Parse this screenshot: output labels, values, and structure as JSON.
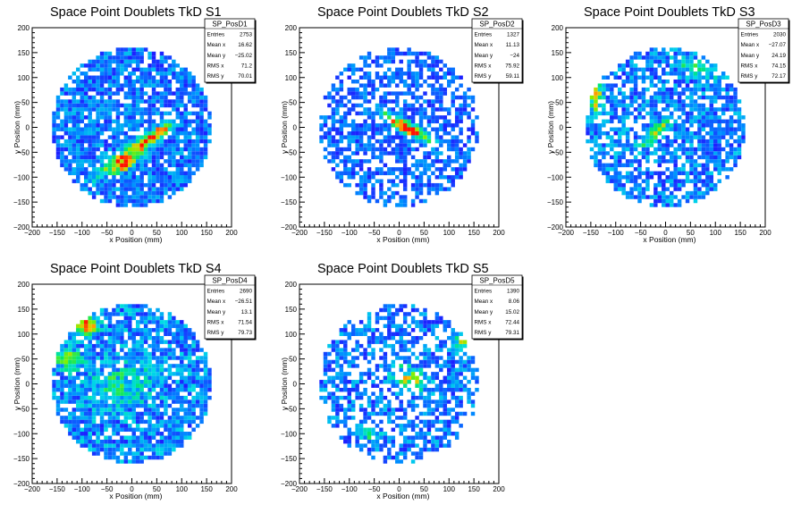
{
  "chart_data": [
    {
      "type": "heatmap",
      "title": "Space Point Doublets TkD S1",
      "xlabel": "x Position (mm)",
      "ylabel": "y Position (mm)",
      "xlim": [
        -200,
        200
      ],
      "ylim": [
        -200,
        200
      ],
      "xticks": [
        "−200",
        "−150",
        "−100",
        "−50",
        "0",
        "50",
        "100",
        "150",
        "200"
      ],
      "yticks": [
        "−200",
        "−150",
        "−100",
        "−50",
        "0",
        "50",
        "100",
        "150",
        "200"
      ],
      "stats": {
        "name": "SP_PosD1",
        "rows": [
          {
            "label": "Entries",
            "value": "2753"
          },
          {
            "label": "Mean x",
            "value": "16.62"
          },
          {
            "label": "Mean y",
            "value": "−25.02"
          },
          {
            "label": "RMS x",
            "value": "71.2"
          },
          {
            "label": "RMS y",
            "value": "70.01"
          }
        ]
      },
      "hotspots": [
        {
          "x": 0,
          "y": -50,
          "a": 70,
          "b": 14,
          "angle": 35,
          "w": 1.0
        },
        {
          "x": -10,
          "y": -75,
          "a": 20,
          "b": 10,
          "angle": 30,
          "w": 0.9
        },
        {
          "x": 55,
          "y": -10,
          "a": 28,
          "b": 9,
          "angle": 35,
          "w": 0.6
        }
      ],
      "background": 0.34,
      "fill": 0.85
    },
    {
      "type": "heatmap",
      "title": "Space Point Doublets TkD S2",
      "xlabel": "x Position (mm)",
      "ylabel": "y Position (mm)",
      "xlim": [
        -200,
        200
      ],
      "ylim": [
        -200,
        200
      ],
      "xticks": [
        "−200",
        "−150",
        "−100",
        "−50",
        "0",
        "50",
        "100",
        "150",
        "200"
      ],
      "yticks": [
        "−200",
        "−150",
        "−100",
        "−50",
        "0",
        "50",
        "100",
        "150",
        "200"
      ],
      "stats": {
        "name": "SP_PosD2",
        "rows": [
          {
            "label": "Entries",
            "value": "1327"
          },
          {
            "label": "Mean x",
            "value": "11.13"
          },
          {
            "label": "Mean y",
            "value": "−24"
          },
          {
            "label": "RMS x",
            "value": "75.92"
          },
          {
            "label": "RMS y",
            "value": "59.11"
          }
        ]
      },
      "hotspots": [
        {
          "x": 15,
          "y": 0,
          "a": 60,
          "b": 11,
          "angle": -28,
          "w": 1.0
        },
        {
          "x": 20,
          "y": -5,
          "a": 14,
          "b": 8,
          "angle": -28,
          "w": 0.9
        }
      ],
      "background": 0.28,
      "fill": 0.6
    },
    {
      "type": "heatmap",
      "title": "Space Point Doublets TkD S3",
      "xlabel": "x Position (mm)",
      "ylabel": "y Position (mm)",
      "xlim": [
        -200,
        200
      ],
      "ylim": [
        -200,
        200
      ],
      "xticks": [
        "−200",
        "−150",
        "−100",
        "−50",
        "0",
        "50",
        "100",
        "150",
        "200"
      ],
      "yticks": [
        "−200",
        "−150",
        "−100",
        "−50",
        "0",
        "50",
        "100",
        "150",
        "200"
      ],
      "stats": {
        "name": "SP_PosD3",
        "rows": [
          {
            "label": "Entries",
            "value": "2030"
          },
          {
            "label": "Mean x",
            "value": "−27.07"
          },
          {
            "label": "Mean y",
            "value": "24.19"
          },
          {
            "label": "RMS x",
            "value": "74.15"
          },
          {
            "label": "RMS y",
            "value": "72.17"
          }
        ]
      },
      "hotspots": [
        {
          "x": -20,
          "y": -10,
          "a": 40,
          "b": 12,
          "angle": 40,
          "w": 0.8
        },
        {
          "x": -140,
          "y": 60,
          "a": 14,
          "b": 30,
          "angle": 0,
          "w": 0.7
        },
        {
          "x": 60,
          "y": 120,
          "a": 40,
          "b": 14,
          "angle": -20,
          "w": 0.5
        }
      ],
      "background": 0.38,
      "fill": 0.72
    },
    {
      "type": "heatmap",
      "title": "Space Point Doublets TkD S4",
      "xlabel": "x Position (mm)",
      "ylabel": "y Position (mm)",
      "xlim": [
        -200,
        200
      ],
      "ylim": [
        -200,
        200
      ],
      "xticks": [
        "−200",
        "−150",
        "−100",
        "−50",
        "0",
        "50",
        "100",
        "150",
        "200"
      ],
      "yticks": [
        "−200",
        "−150",
        "−100",
        "−50",
        "0",
        "50",
        "100",
        "150",
        "200"
      ],
      "stats": {
        "name": "SP_PosD4",
        "rows": [
          {
            "label": "Entries",
            "value": "2690"
          },
          {
            "label": "Mean x",
            "value": "−26.51"
          },
          {
            "label": "Mean y",
            "value": "13.1"
          },
          {
            "label": "RMS x",
            "value": "71.54"
          },
          {
            "label": "RMS y",
            "value": "79.73"
          }
        ]
      },
      "hotspots": [
        {
          "x": -90,
          "y": 115,
          "a": 20,
          "b": 18,
          "angle": 0,
          "w": 1.0
        },
        {
          "x": -130,
          "y": 50,
          "a": 30,
          "b": 20,
          "angle": 0,
          "w": 0.55
        },
        {
          "x": -20,
          "y": 0,
          "a": 60,
          "b": 40,
          "angle": 0,
          "w": 0.35
        }
      ],
      "background": 0.42,
      "fill": 0.86
    },
    {
      "type": "heatmap",
      "title": "Space Point Doublets TkD S5",
      "xlabel": "x Position (mm)",
      "ylabel": "y Position (mm)",
      "xlim": [
        -200,
        200
      ],
      "ylim": [
        -200,
        200
      ],
      "xticks": [
        "−200",
        "−150",
        "−100",
        "−50",
        "0",
        "50",
        "100",
        "150",
        "200"
      ],
      "yticks": [
        "−200",
        "−150",
        "−100",
        "−50",
        "0",
        "50",
        "100",
        "150",
        "200"
      ],
      "stats": {
        "name": "SP_PosD5",
        "rows": [
          {
            "label": "Entries",
            "value": "1390"
          },
          {
            "label": "Mean x",
            "value": "8.06"
          },
          {
            "label": "Mean y",
            "value": "15.02"
          },
          {
            "label": "RMS x",
            "value": "72.44"
          },
          {
            "label": "RMS y",
            "value": "79.31"
          }
        ]
      },
      "hotspots": [
        {
          "x": 20,
          "y": 10,
          "a": 35,
          "b": 22,
          "angle": -20,
          "w": 0.6
        },
        {
          "x": 130,
          "y": 80,
          "a": 20,
          "b": 20,
          "angle": 0,
          "w": 0.5
        },
        {
          "x": -60,
          "y": -100,
          "a": 22,
          "b": 14,
          "angle": 0,
          "w": 0.5
        }
      ],
      "background": 0.36,
      "fill": 0.62
    }
  ]
}
